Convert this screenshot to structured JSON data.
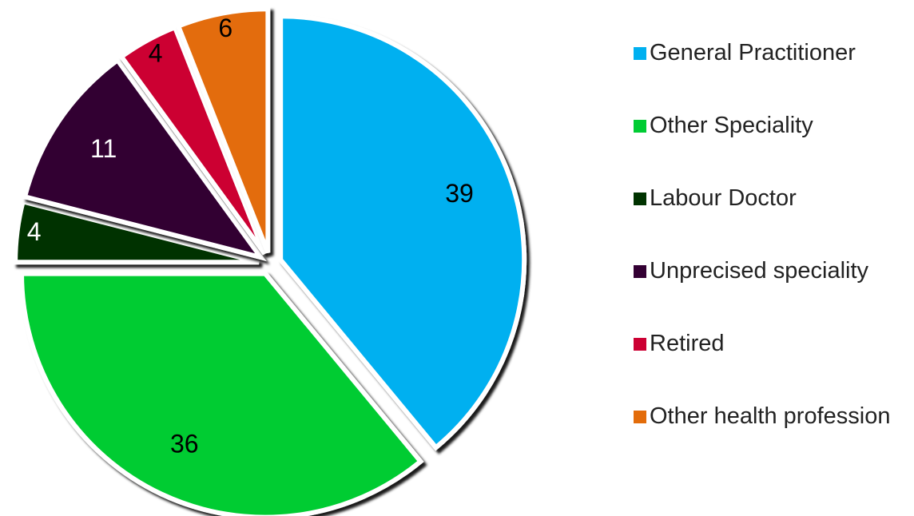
{
  "chart_data": {
    "type": "pie",
    "categories": [
      "General Practitioner",
      "Other Speciality",
      "Labour Doctor",
      "Unprecised speciality",
      "Retired",
      "Other health profession"
    ],
    "values": [
      39,
      36,
      4,
      11,
      4,
      6
    ],
    "colors": [
      "#00b0f0",
      "#00cc33",
      "#003300",
      "#330033",
      "#cc0033",
      "#e36c0a"
    ],
    "legend": "right"
  }
}
